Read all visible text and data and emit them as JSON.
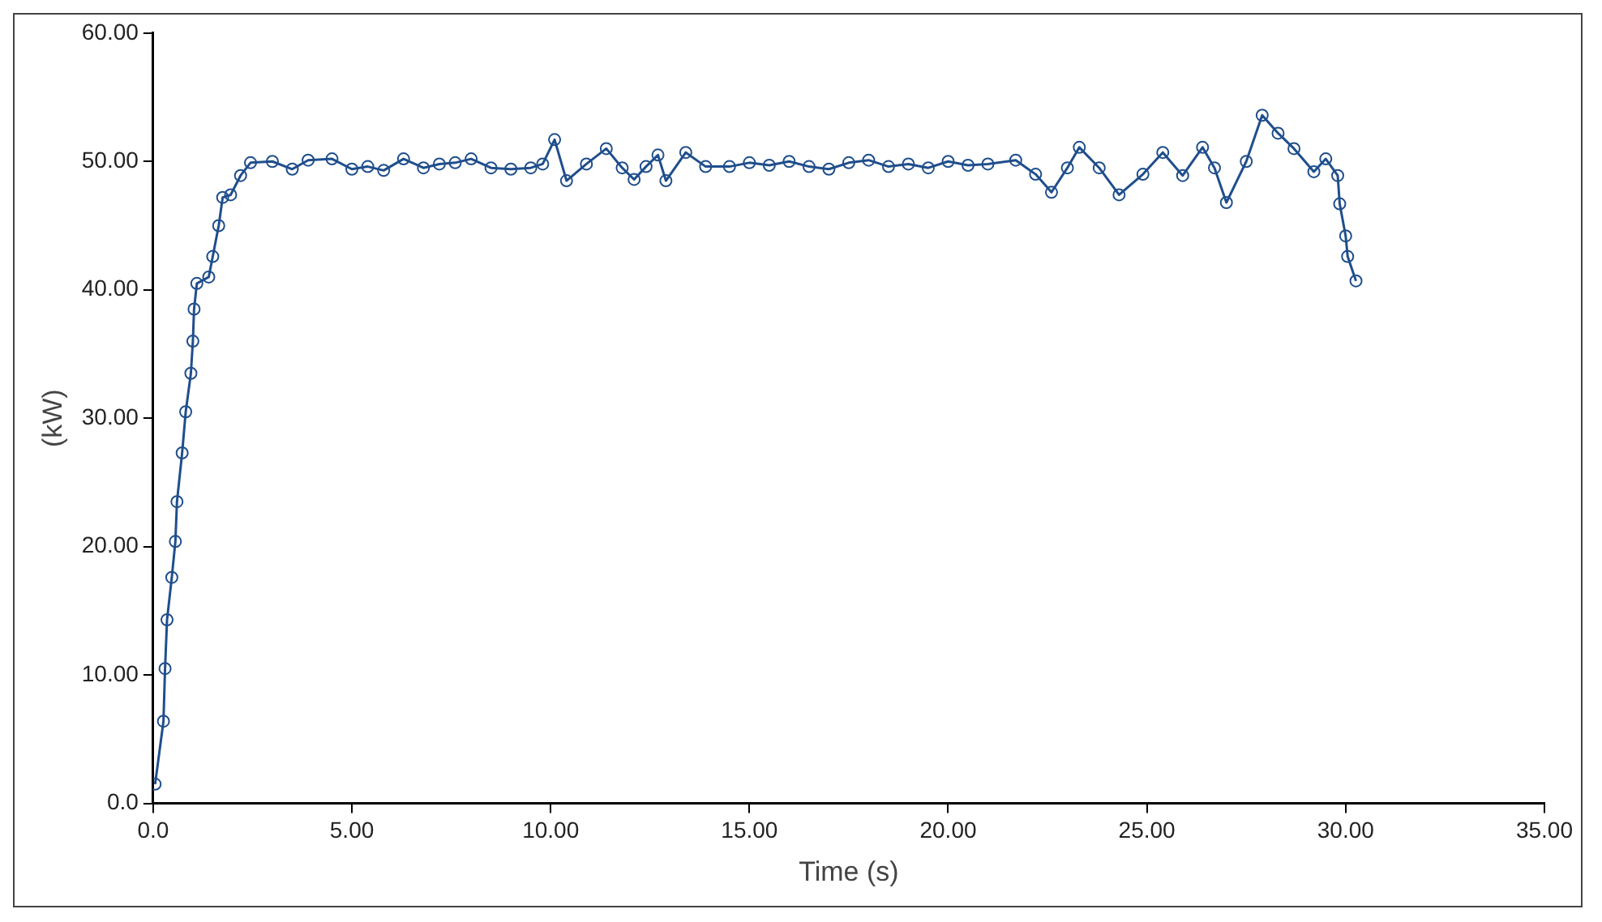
{
  "chart_data": {
    "type": "line",
    "xlabel": "Time (s)",
    "ylabel": "(kW)",
    "xlim": [
      0,
      35
    ],
    "ylim": [
      0,
      60
    ],
    "xticks": [
      {
        "value": 0,
        "label": "0.0"
      },
      {
        "value": 5,
        "label": "5.00"
      },
      {
        "value": 10,
        "label": "10.00"
      },
      {
        "value": 15,
        "label": "15.00"
      },
      {
        "value": 20,
        "label": "20.00"
      },
      {
        "value": 25,
        "label": "25.00"
      },
      {
        "value": 30,
        "label": "30.00"
      },
      {
        "value": 35,
        "label": "35.00"
      }
    ],
    "yticks": [
      {
        "value": 0,
        "label": "0.0"
      },
      {
        "value": 10,
        "label": "10.00"
      },
      {
        "value": 20,
        "label": "20.00"
      },
      {
        "value": 30,
        "label": "30.00"
      },
      {
        "value": 40,
        "label": "40.00"
      },
      {
        "value": 50,
        "label": "50.00"
      },
      {
        "value": 60,
        "label": "60.00"
      }
    ],
    "grid": false,
    "legend": false,
    "marker": "circle",
    "line_style": "solid",
    "series": [
      {
        "color": "#1f4e8c",
        "x": [
          0.05,
          0.26,
          0.3,
          0.35,
          0.47,
          0.56,
          0.6,
          0.73,
          0.82,
          0.95,
          1.0,
          1.03,
          1.1,
          1.4,
          1.5,
          1.65,
          1.75,
          1.95,
          2.2,
          2.45,
          3.0,
          3.5,
          3.9,
          4.5,
          5.0,
          5.4,
          5.8,
          6.3,
          6.8,
          7.2,
          7.6,
          8.0,
          8.5,
          9.0,
          9.5,
          9.8,
          10.1,
          10.4,
          10.9,
          11.4,
          11.8,
          12.1,
          12.4,
          12.7,
          12.9,
          13.4,
          13.9,
          14.5,
          15.0,
          15.5,
          16.0,
          16.5,
          17.0,
          17.5,
          18.0,
          18.5,
          19.0,
          19.5,
          20.0,
          20.5,
          21.0,
          21.7,
          22.2,
          22.6,
          23.0,
          23.3,
          23.8,
          24.3,
          24.9,
          25.4,
          25.9,
          26.4,
          26.7,
          27.0,
          27.5,
          27.9,
          28.3,
          28.7,
          29.2,
          29.5,
          29.8,
          29.85,
          30.0,
          30.05,
          30.26
        ],
        "values": [
          1.5,
          6.4,
          10.5,
          14.3,
          17.6,
          20.4,
          23.5,
          27.3,
          30.5,
          33.5,
          36,
          38.5,
          40.5,
          41,
          42.6,
          45,
          47.2,
          47.4,
          48.9,
          49.9,
          50,
          49.4,
          50.1,
          50.2,
          49.4,
          49.6,
          49.3,
          50.2,
          49.5,
          49.8,
          49.9,
          50.2,
          49.5,
          49.4,
          49.5,
          49.8,
          51.7,
          48.5,
          49.8,
          51,
          49.5,
          48.6,
          49.6,
          50.5,
          48.5,
          50.7,
          49.6,
          49.6,
          49.9,
          49.7,
          50,
          49.6,
          49.4,
          49.9,
          50.1,
          49.6,
          49.8,
          49.5,
          50,
          49.7,
          49.8,
          50.1,
          49,
          47.6,
          49.5,
          51.1,
          49.5,
          47.4,
          49,
          50.7,
          48.9,
          51.1,
          49.5,
          46.8,
          50,
          53.6,
          52.2,
          51,
          49.2,
          50.2,
          48.9,
          46.7,
          44.2,
          42.6,
          40.7
        ]
      }
    ]
  }
}
